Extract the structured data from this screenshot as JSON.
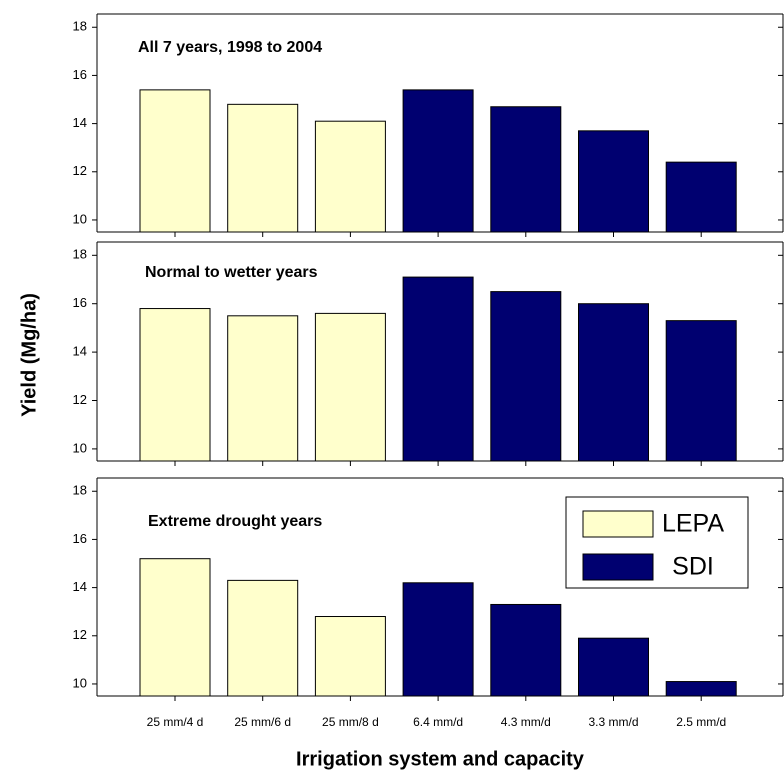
{
  "chart_data": [
    {
      "type": "bar",
      "title": "All 7 years, 1998 to 2004",
      "series": [
        {
          "color": "#ffffcc",
          "values": [
            15.4,
            14.8,
            14.1,
            null,
            null,
            null,
            null
          ]
        },
        {
          "color": "#000070",
          "values": [
            null,
            null,
            null,
            15.4,
            14.7,
            13.7,
            12.4
          ]
        }
      ],
      "ylim": [
        9.5,
        18.55
      ],
      "yticks": [
        10,
        12,
        14,
        16,
        18
      ]
    },
    {
      "type": "bar",
      "title": "Normal to wetter years",
      "ylabel": "Yield (Mg/ha)",
      "series": [
        {
          "color": "#ffffcc",
          "values": [
            15.8,
            15.5,
            15.6,
            null,
            null,
            null,
            null
          ]
        },
        {
          "color": "#000070",
          "values": [
            null,
            null,
            null,
            17.1,
            16.5,
            16.0,
            15.3
          ]
        }
      ],
      "ylim": [
        9.5,
        18.55
      ],
      "yticks": [
        10,
        12,
        14,
        16,
        18
      ]
    },
    {
      "type": "bar",
      "title": "Extreme drought years",
      "xlabel": "Irrigation system and capacity",
      "categories": [
        "25 mm/4 d",
        "25 mm/6 d",
        "25 mm/8 d",
        "6.4 mm/d",
        "4.3 mm/d",
        "3.3 mm/d",
        "2.5 mm/d"
      ],
      "series": [
        {
          "name": "LEPA",
          "color": "#ffffcc",
          "values": [
            15.2,
            14.3,
            12.8,
            null,
            null,
            null,
            null
          ]
        },
        {
          "name": "SDI",
          "color": "#000070",
          "values": [
            null,
            null,
            null,
            14.2,
            13.3,
            11.9,
            10.1
          ]
        }
      ],
      "ylim": [
        9.5,
        18.55
      ],
      "yticks": [
        10,
        12,
        14,
        16,
        18
      ],
      "legend": "upper right"
    }
  ]
}
